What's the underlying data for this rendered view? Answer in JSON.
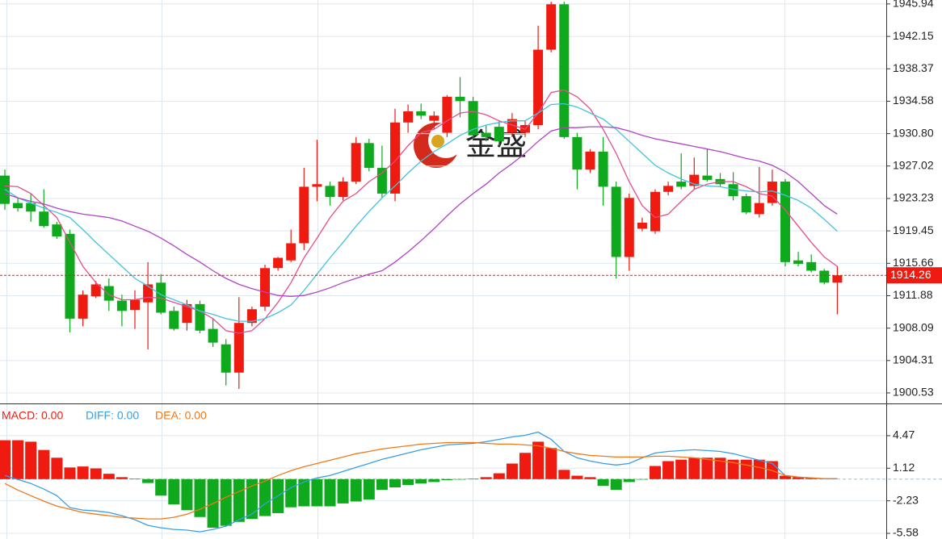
{
  "chart_data": [
    {
      "type": "candlestick",
      "watermark": "金盛",
      "up_color": "#ef1a10",
      "down_color": "#0ea91c",
      "grid": true,
      "ylim": [
        1899.3,
        1946.4
      ],
      "yticks": [
        1945.94,
        1942.15,
        1938.37,
        1934.58,
        {
          "value": 1930.8,
          "label": "1930.80"
        },
        1927.02,
        1923.23,
        1919.45,
        1915.66,
        1911.88,
        1908.09,
        1904.31,
        1900.53
      ],
      "open": [
        1925.9,
        1922.7,
        1922.7,
        1921.7,
        1920.2,
        1919.1,
        1909.2,
        1911.8,
        1913.0,
        1911.3,
        1910.2,
        1911.1,
        1913.4,
        1910.1,
        1908.7,
        1910.9,
        1908.0,
        1906.2,
        1902.9,
        1908.7,
        1910.6,
        1915.1,
        1916.0,
        1918.0,
        1924.6,
        1924.7,
        1923.4,
        1925.2,
        1929.7,
        1926.8,
        1923.8,
        1932.1,
        1933.4,
        1932.3,
        1930.9,
        1935.1,
        1934.6,
        1930.9,
        1931.6,
        1930.9,
        1930.9,
        1931.8,
        1940.6,
        1945.9,
        1930.4,
        1926.6,
        1928.7,
        1924.6,
        1916.4,
        1919.7,
        1919.4,
        1924.0,
        1925.2,
        1924.7,
        1925.9,
        1925.5,
        1924.9,
        1923.5,
        1921.4,
        1922.7,
        1925.2,
        1916.0,
        1915.8,
        1914.8,
        1913.4
      ],
      "high": [
        1926.6,
        1923.3,
        1923.8,
        1924.3,
        1920.5,
        1919.6,
        1912.5,
        1913.6,
        1913.9,
        1912.0,
        1912.5,
        1915.8,
        1914.4,
        1910.6,
        1911.4,
        1911.3,
        1909.2,
        1906.8,
        1911.7,
        1910.6,
        1915.5,
        1916.4,
        1919.6,
        1926.8,
        1930.1,
        1925.2,
        1925.7,
        1930.4,
        1930.2,
        1929.4,
        1933.7,
        1934.2,
        1934.3,
        1933.4,
        1935.3,
        1937.4,
        1935.1,
        1931.8,
        1932.3,
        1933.2,
        1932.3,
        1943.4,
        1946.2,
        1946.2,
        1930.9,
        1929.0,
        1930.4,
        1925.2,
        1923.8,
        1921.0,
        1924.3,
        1925.2,
        1928.5,
        1928.0,
        1929.0,
        1926.2,
        1926.3,
        1923.8,
        1926.9,
        1926.6,
        1925.5,
        1917.0,
        1916.7,
        1915.0,
        1915.3
      ],
      "low": [
        1921.9,
        1921.7,
        1920.5,
        1919.8,
        1918.5,
        1907.6,
        1908.3,
        1911.6,
        1910.1,
        1908.3,
        1908.0,
        1905.6,
        1909.7,
        1907.8,
        1907.8,
        1907.5,
        1905.9,
        1901.4,
        1901.0,
        1908.3,
        1910.1,
        1914.8,
        1915.8,
        1917.2,
        1922.9,
        1922.4,
        1923.0,
        1924.9,
        1926.4,
        1923.3,
        1922.9,
        1930.9,
        1932.5,
        1931.3,
        1930.4,
        1932.7,
        1930.2,
        1929.9,
        1929.4,
        1930.4,
        1930.4,
        1931.3,
        1940.3,
        1930.2,
        1924.3,
        1926.2,
        1922.4,
        1913.9,
        1914.8,
        1919.4,
        1919.1,
        1923.6,
        1924.3,
        1924.3,
        1925.2,
        1924.6,
        1923.0,
        1921.4,
        1921.0,
        1922.4,
        1915.3,
        1915.3,
        1914.6,
        1913.2,
        1909.7
      ],
      "close": [
        1922.6,
        1922.1,
        1921.7,
        1920.0,
        1918.8,
        1909.2,
        1912.0,
        1913.2,
        1911.3,
        1910.1,
        1911.4,
        1913.2,
        1909.9,
        1908.0,
        1910.9,
        1907.8,
        1906.4,
        1902.9,
        1908.7,
        1910.3,
        1915.1,
        1916.3,
        1918.0,
        1924.6,
        1924.9,
        1923.4,
        1925.2,
        1929.7,
        1926.8,
        1923.8,
        1932.1,
        1933.4,
        1932.9,
        1932.9,
        1935.1,
        1934.6,
        1930.6,
        1930.4,
        1929.9,
        1932.5,
        1931.8,
        1940.6,
        1945.9,
        1930.4,
        1926.6,
        1928.7,
        1924.6,
        1916.4,
        1923.3,
        1920.4,
        1924.0,
        1924.7,
        1924.6,
        1926.0,
        1925.4,
        1924.9,
        1923.5,
        1921.6,
        1922.7,
        1925.2,
        1915.8,
        1915.6,
        1914.8,
        1913.4,
        1914.26
      ],
      "lines": [
        {
          "color": "#e64c8c",
          "values": [
            1924.7,
            1924.6,
            1923.8,
            1922.4,
            1921.0,
            1918.1,
            1915.3,
            1913.4,
            1912.0,
            1911.4,
            1911.4,
            1911.7,
            1911.6,
            1911.1,
            1910.6,
            1910.1,
            1909.2,
            1907.8,
            1907.5,
            1907.8,
            1909.2,
            1911.1,
            1913.4,
            1916.3,
            1918.6,
            1921.0,
            1922.9,
            1923.8,
            1925.2,
            1926.2,
            1927.6,
            1929.4,
            1930.9,
            1931.3,
            1932.3,
            1933.2,
            1933.4,
            1933.0,
            1932.3,
            1931.8,
            1931.3,
            1933.2,
            1935.6,
            1935.9,
            1935.1,
            1933.7,
            1931.3,
            1928.5,
            1925.2,
            1922.4,
            1921.0,
            1921.4,
            1922.9,
            1924.3,
            1924.9,
            1925.2,
            1925.2,
            1924.6,
            1923.8,
            1923.5,
            1921.9,
            1920.0,
            1918.1,
            1916.4,
            1915.3
          ]
        },
        {
          "color": "#40c4dc",
          "values": [
            1924.3,
            1923.3,
            1922.7,
            1922.1,
            1921.6,
            1921.0,
            1919.6,
            1918.1,
            1916.7,
            1915.3,
            1913.9,
            1913.0,
            1912.0,
            1911.4,
            1910.8,
            1910.1,
            1909.7,
            1909.2,
            1908.9,
            1908.9,
            1909.2,
            1909.9,
            1910.8,
            1912.5,
            1914.4,
            1916.3,
            1918.1,
            1920.0,
            1921.7,
            1923.3,
            1924.7,
            1926.2,
            1927.6,
            1928.7,
            1929.6,
            1930.6,
            1931.3,
            1931.8,
            1932.1,
            1932.3,
            1932.3,
            1933.2,
            1934.2,
            1934.3,
            1933.9,
            1933.2,
            1932.5,
            1931.3,
            1929.9,
            1928.5,
            1927.1,
            1926.2,
            1925.5,
            1924.9,
            1924.7,
            1924.6,
            1924.3,
            1924.1,
            1924.0,
            1924.1,
            1923.6,
            1923.0,
            1922.1,
            1920.8,
            1919.4
          ]
        },
        {
          "color": "#b044c4",
          "values": [
            1923.8,
            1923.3,
            1922.9,
            1922.6,
            1922.1,
            1921.7,
            1921.4,
            1921.2,
            1921.0,
            1920.6,
            1920.0,
            1919.4,
            1918.6,
            1917.7,
            1916.7,
            1915.8,
            1914.8,
            1913.9,
            1913.2,
            1912.7,
            1912.3,
            1911.9,
            1911.8,
            1911.9,
            1912.3,
            1912.8,
            1913.4,
            1913.9,
            1914.4,
            1914.8,
            1915.8,
            1917.0,
            1918.3,
            1919.7,
            1921.2,
            1922.6,
            1923.8,
            1924.9,
            1926.2,
            1927.3,
            1928.5,
            1929.9,
            1931.1,
            1931.5,
            1931.5,
            1931.6,
            1931.6,
            1931.5,
            1931.1,
            1930.6,
            1930.2,
            1929.9,
            1929.6,
            1929.3,
            1929.0,
            1928.7,
            1928.3,
            1927.9,
            1927.6,
            1927.1,
            1926.3,
            1925.2,
            1923.8,
            1922.4,
            1921.4
          ]
        }
      ]
    },
    {
      "type": "macd",
      "grid": true,
      "ylim": [
        -6.16,
        7.37
      ],
      "yticks": [
        4.47,
        1.12,
        -2.23,
        -5.58
      ],
      "series": [
        {
          "name": "MACD: 0.00",
          "style": "bar",
          "color": "#ef1a10",
          "negative_color": "#0ea91c",
          "values": [
            4.0,
            4.0,
            3.85,
            3.0,
            2.2,
            1.2,
            1.3,
            1.1,
            0.55,
            0.2,
            0.05,
            -0.4,
            -1.7,
            -2.6,
            -3.2,
            -3.9,
            -5.0,
            -4.8,
            -4.4,
            -4.1,
            -3.8,
            -3.5,
            -2.9,
            -2.8,
            -2.8,
            -2.8,
            -2.5,
            -2.3,
            -2.1,
            -1.1,
            -0.85,
            -0.6,
            -0.45,
            -0.3,
            -0.1,
            -0.05,
            0.05,
            0.2,
            0.6,
            1.6,
            2.7,
            3.85,
            3.2,
            0.95,
            0.35,
            0.2,
            -0.7,
            -1.1,
            -0.3,
            -0.05,
            1.35,
            1.85,
            2.0,
            2.2,
            2.2,
            2.2,
            2.0,
            2.0,
            2.0,
            1.85,
            0.35,
            0.2,
            0.1,
            0.05,
            0.0
          ]
        },
        {
          "name": "DIFF: 0.00",
          "style": "line",
          "color": "#3a9ee4",
          "values": [
            0.37,
            -0.04,
            -0.45,
            -1.03,
            -1.7,
            -2.94,
            -3.18,
            -3.27,
            -3.43,
            -3.76,
            -4.18,
            -4.76,
            -5.01,
            -5.17,
            -5.25,
            -5.42,
            -5.17,
            -4.84,
            -4.18,
            -3.6,
            -2.52,
            -1.7,
            -0.87,
            -0.29,
            0.12,
            0.37,
            0.79,
            1.2,
            1.61,
            2.03,
            2.36,
            2.69,
            3.02,
            3.27,
            3.52,
            3.6,
            3.68,
            3.85,
            4.09,
            4.34,
            4.51,
            4.84,
            4.09,
            2.85,
            2.19,
            1.86,
            1.61,
            1.45,
            1.61,
            2.19,
            2.69,
            2.85,
            2.94,
            3.02,
            2.94,
            2.85,
            2.61,
            2.27,
            1.94,
            1.61,
            0.37,
            0.21,
            0.12,
            0.04,
            0.04
          ]
        },
        {
          "name": "DEA: 0.00",
          "style": "line",
          "color": "#f07818",
          "values": [
            -0.45,
            -1.12,
            -1.7,
            -2.27,
            -2.77,
            -3.1,
            -3.43,
            -3.6,
            -3.76,
            -3.93,
            -4.01,
            -4.09,
            -4.09,
            -3.93,
            -3.6,
            -3.1,
            -2.52,
            -1.86,
            -1.28,
            -0.7,
            -0.21,
            0.37,
            0.87,
            1.28,
            1.61,
            1.94,
            2.27,
            2.61,
            2.85,
            3.1,
            3.27,
            3.43,
            3.6,
            3.68,
            3.76,
            3.76,
            3.76,
            3.68,
            3.6,
            3.6,
            3.52,
            3.43,
            3.18,
            2.85,
            2.61,
            2.44,
            2.36,
            2.27,
            2.27,
            2.27,
            2.36,
            2.36,
            2.27,
            2.19,
            2.03,
            1.86,
            1.7,
            1.45,
            1.2,
            0.87,
            0.37,
            0.21,
            0.12,
            0.04,
            0.04
          ]
        }
      ]
    }
  ]
}
